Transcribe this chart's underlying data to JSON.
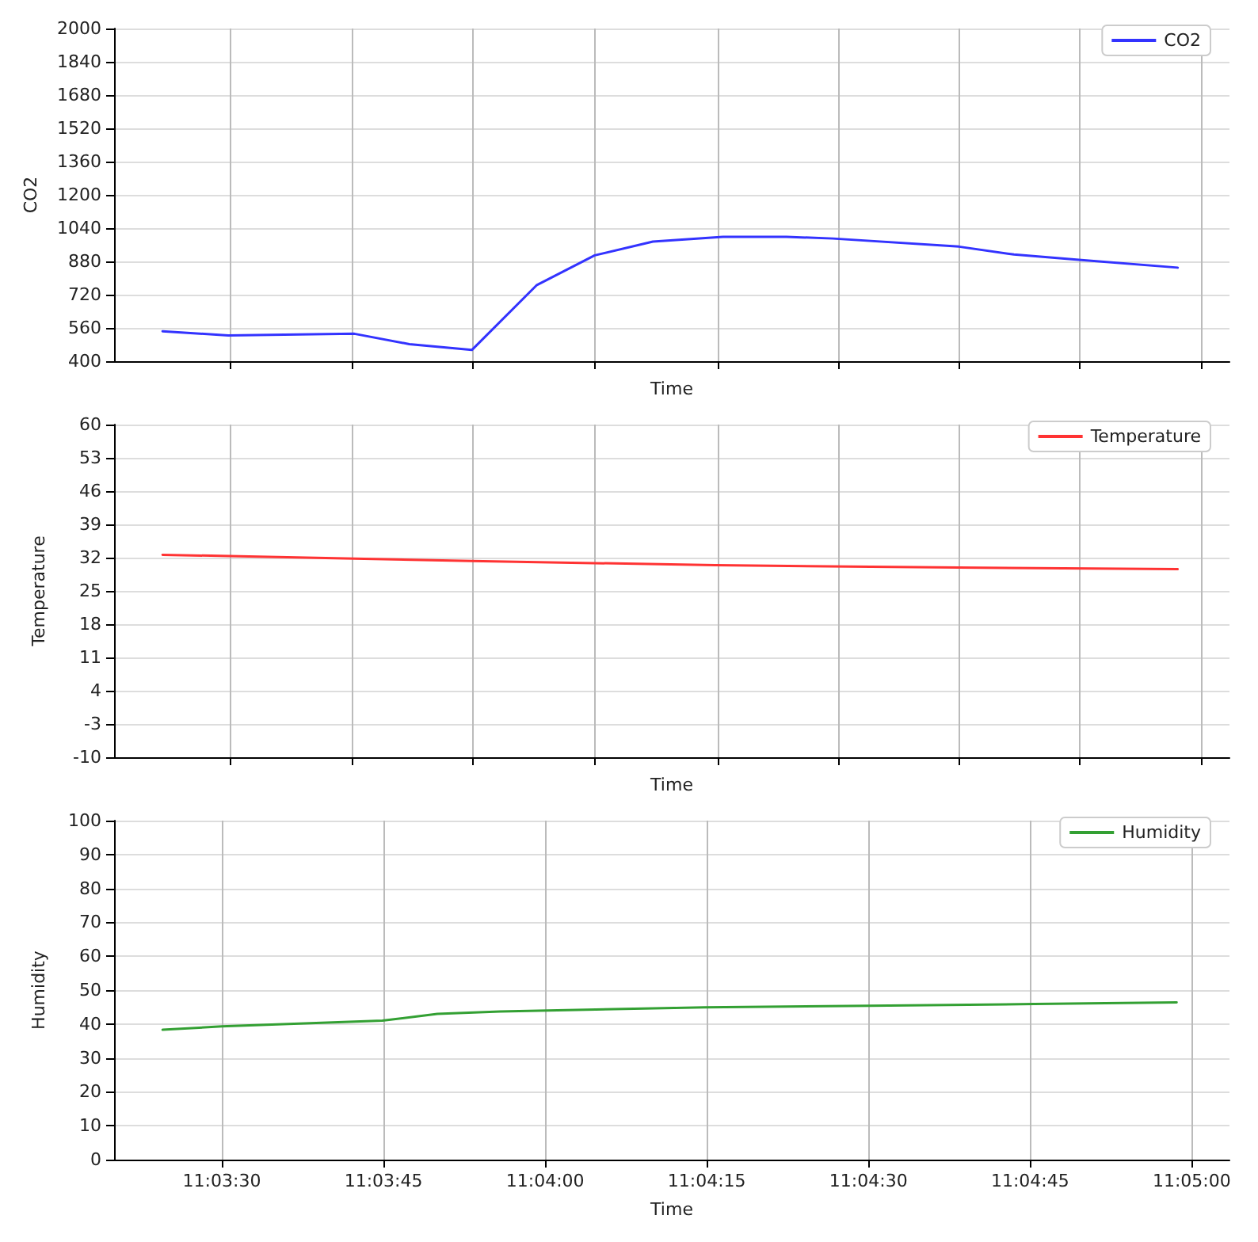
{
  "chart_data": [
    {
      "type": "line",
      "xlabel": "Time",
      "ylabel": "CO2",
      "xlim": [
        11.055556,
        11.084306
      ],
      "xticks": [
        {
          "value": 11.058556,
          "label": null
        },
        {
          "value": 11.061694,
          "label": null
        },
        {
          "value": 11.064778,
          "label": null
        },
        {
          "value": 11.067944,
          "label": null
        },
        {
          "value": 11.071111,
          "label": null
        },
        {
          "value": 11.074222,
          "label": null
        },
        {
          "value": 11.077333,
          "label": null
        },
        {
          "value": 11.080417,
          "label": null
        },
        {
          "value": 11.083583,
          "label": null
        }
      ],
      "ylim": [
        400,
        2000
      ],
      "yticks": [
        400,
        560,
        720,
        880,
        1040,
        1200,
        1360,
        1520,
        1680,
        1840,
        2000
      ],
      "grid": true,
      "legend": "top right",
      "tick_labels": "y",
      "marker": "none",
      "line_style": "solid",
      "series": [
        {
          "name": "CO2",
          "color": "#3333ff",
          "x": [
            11.056806,
            11.0585,
            11.06175,
            11.063167,
            11.064778,
            11.066444,
            11.067944,
            11.069444,
            11.07125,
            11.072889,
            11.074083,
            11.077333,
            11.07875,
            11.080361,
            11.082972
          ],
          "values": [
            544,
            524,
            532,
            482,
            454,
            765,
            909,
            975,
            998,
            998,
            990,
            951,
            913,
            889,
            850
          ]
        }
      ]
    },
    {
      "type": "line",
      "xlabel": "Time",
      "ylabel": "Temperature",
      "xlim": [
        11.055556,
        11.084306
      ],
      "xticks": [
        {
          "value": 11.058556,
          "label": null
        },
        {
          "value": 11.061694,
          "label": null
        },
        {
          "value": 11.064778,
          "label": null
        },
        {
          "value": 11.067944,
          "label": null
        },
        {
          "value": 11.071111,
          "label": null
        },
        {
          "value": 11.074222,
          "label": null
        },
        {
          "value": 11.077333,
          "label": null
        },
        {
          "value": 11.080417,
          "label": null
        },
        {
          "value": 11.083583,
          "label": null
        }
      ],
      "ylim": [
        -10,
        60
      ],
      "yticks": [
        -10,
        -3,
        4,
        11,
        18,
        25,
        32,
        39,
        46,
        53,
        60
      ],
      "grid": true,
      "legend": "top right",
      "tick_labels": "y",
      "marker": "none",
      "line_style": "solid",
      "series": [
        {
          "name": "Temperature",
          "color": "#ff3333",
          "x": [
            11.056806,
            11.06175,
            11.064778,
            11.071056,
            11.077333,
            11.082972
          ],
          "values": [
            32.6,
            31.8,
            31.3,
            30.4,
            29.9,
            29.6
          ]
        }
      ]
    },
    {
      "type": "line",
      "xlabel": "Time",
      "ylabel": "Humidity",
      "xlim": [
        11.055556,
        11.084306
      ],
      "xticks": [
        {
          "value": 11.058333,
          "label": "11:03:30"
        },
        {
          "value": 11.0625,
          "label": "11:03:45"
        },
        {
          "value": 11.066667,
          "label": "11:04:00"
        },
        {
          "value": 11.070833,
          "label": "11:04:15"
        },
        {
          "value": 11.075,
          "label": "11:04:30"
        },
        {
          "value": 11.079167,
          "label": "11:04:45"
        },
        {
          "value": 11.083333,
          "label": "11:05:00"
        }
      ],
      "ylim": [
        0,
        100
      ],
      "yticks": [
        0,
        10,
        20,
        30,
        40,
        50,
        60,
        70,
        80,
        90,
        100
      ],
      "grid": true,
      "legend": "top right",
      "marker": "none",
      "line_style": "solid",
      "series": [
        {
          "name": "Humidity",
          "color": "#33a033",
          "x": [
            11.056806,
            11.058333,
            11.062472,
            11.063889,
            11.0655,
            11.070778,
            11.075028,
            11.079278,
            11.082944
          ],
          "values": [
            38.3,
            39.3,
            41.0,
            43.0,
            43.7,
            44.9,
            45.4,
            45.9,
            46.4
          ]
        }
      ]
    }
  ]
}
